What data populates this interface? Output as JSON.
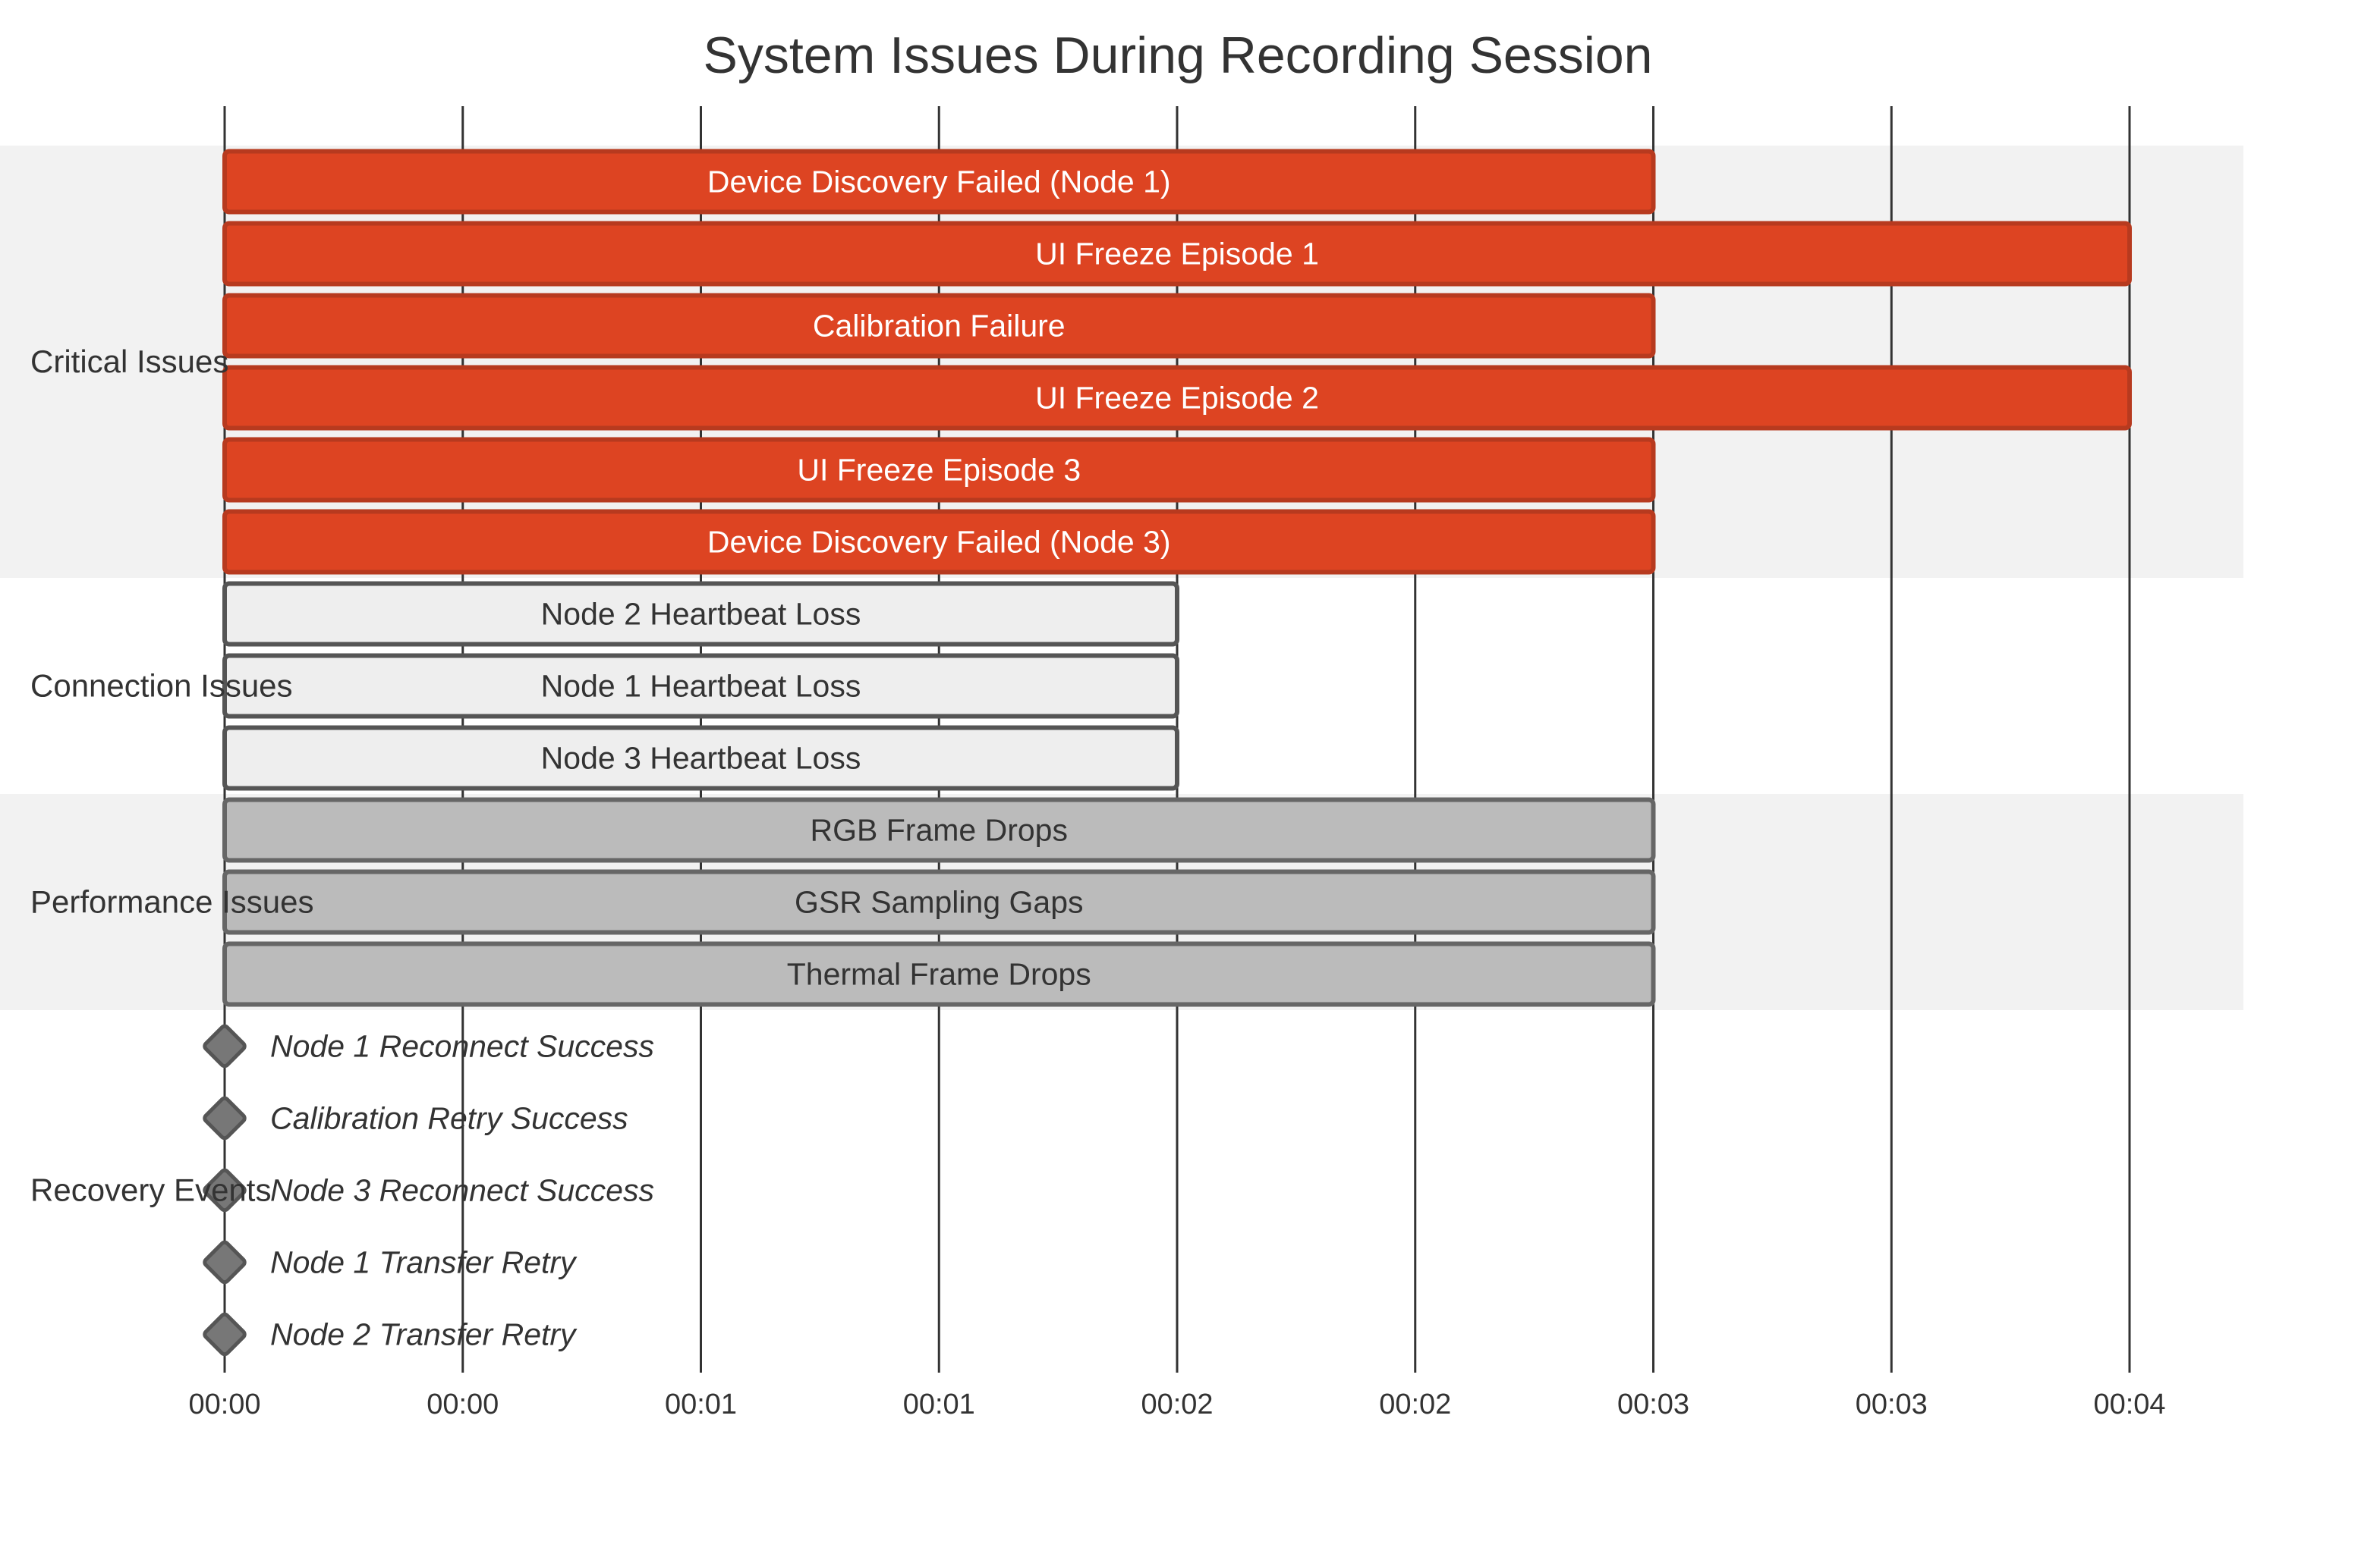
{
  "chart_data": {
    "type": "gantt",
    "title": "System Issues During Recording Session",
    "x_ticks": [
      "00:00",
      "00:00",
      "00:01",
      "00:01",
      "00:02",
      "00:02",
      "00:03",
      "00:03",
      "00:04"
    ],
    "x_range_seconds": [
      0,
      4
    ],
    "sections": [
      {
        "name": "Critical Issues",
        "kind": "crit",
        "tasks": [
          {
            "label": "Device Discovery Failed (Node 1)",
            "start": 0,
            "end": 3
          },
          {
            "label": "UI Freeze Episode 1",
            "start": 0,
            "end": 4
          },
          {
            "label": "Calibration Failure",
            "start": 0,
            "end": 3
          },
          {
            "label": "UI Freeze Episode 2",
            "start": 0,
            "end": 4
          },
          {
            "label": "UI Freeze Episode 3",
            "start": 0,
            "end": 3
          },
          {
            "label": "Device Discovery Failed (Node 3)",
            "start": 0,
            "end": 3
          }
        ]
      },
      {
        "name": "Connection Issues",
        "kind": "normal",
        "tasks": [
          {
            "label": "Node 2 Heartbeat Loss",
            "start": 0,
            "end": 2
          },
          {
            "label": "Node 1 Heartbeat Loss",
            "start": 0,
            "end": 2
          },
          {
            "label": "Node 3 Heartbeat Loss",
            "start": 0,
            "end": 2
          }
        ]
      },
      {
        "name": "Performance Issues",
        "kind": "active",
        "tasks": [
          {
            "label": "RGB Frame Drops",
            "start": 0,
            "end": 3
          },
          {
            "label": "GSR Sampling Gaps",
            "start": 0,
            "end": 3
          },
          {
            "label": "Thermal Frame Drops",
            "start": 0,
            "end": 3
          }
        ]
      },
      {
        "name": "Recovery Events",
        "kind": "milestone",
        "tasks": [
          {
            "label": "Node 1 Reconnect Success",
            "start": 0,
            "end": 0
          },
          {
            "label": "Calibration Retry Success",
            "start": 0,
            "end": 0
          },
          {
            "label": "Node 3 Reconnect Success",
            "start": 0,
            "end": 0
          },
          {
            "label": "Node 1 Transfer Retry",
            "start": 0,
            "end": 0
          },
          {
            "label": "Node 2 Transfer Retry",
            "start": 0,
            "end": 0
          }
        ]
      }
    ],
    "colors": {
      "crit_fill": "#dd4422",
      "crit_stroke": "#b73a1f",
      "crit_text": "#ffffff",
      "normal_fill": "#eeeeee",
      "normal_stroke": "#555555",
      "active_fill": "#bbbbbb",
      "active_stroke": "#666666",
      "milestone_fill": "#777777",
      "milestone_stroke": "#555555",
      "text": "#333333",
      "section_band": "#f2f2f2",
      "grid": "#333333"
    },
    "grid": true
  }
}
